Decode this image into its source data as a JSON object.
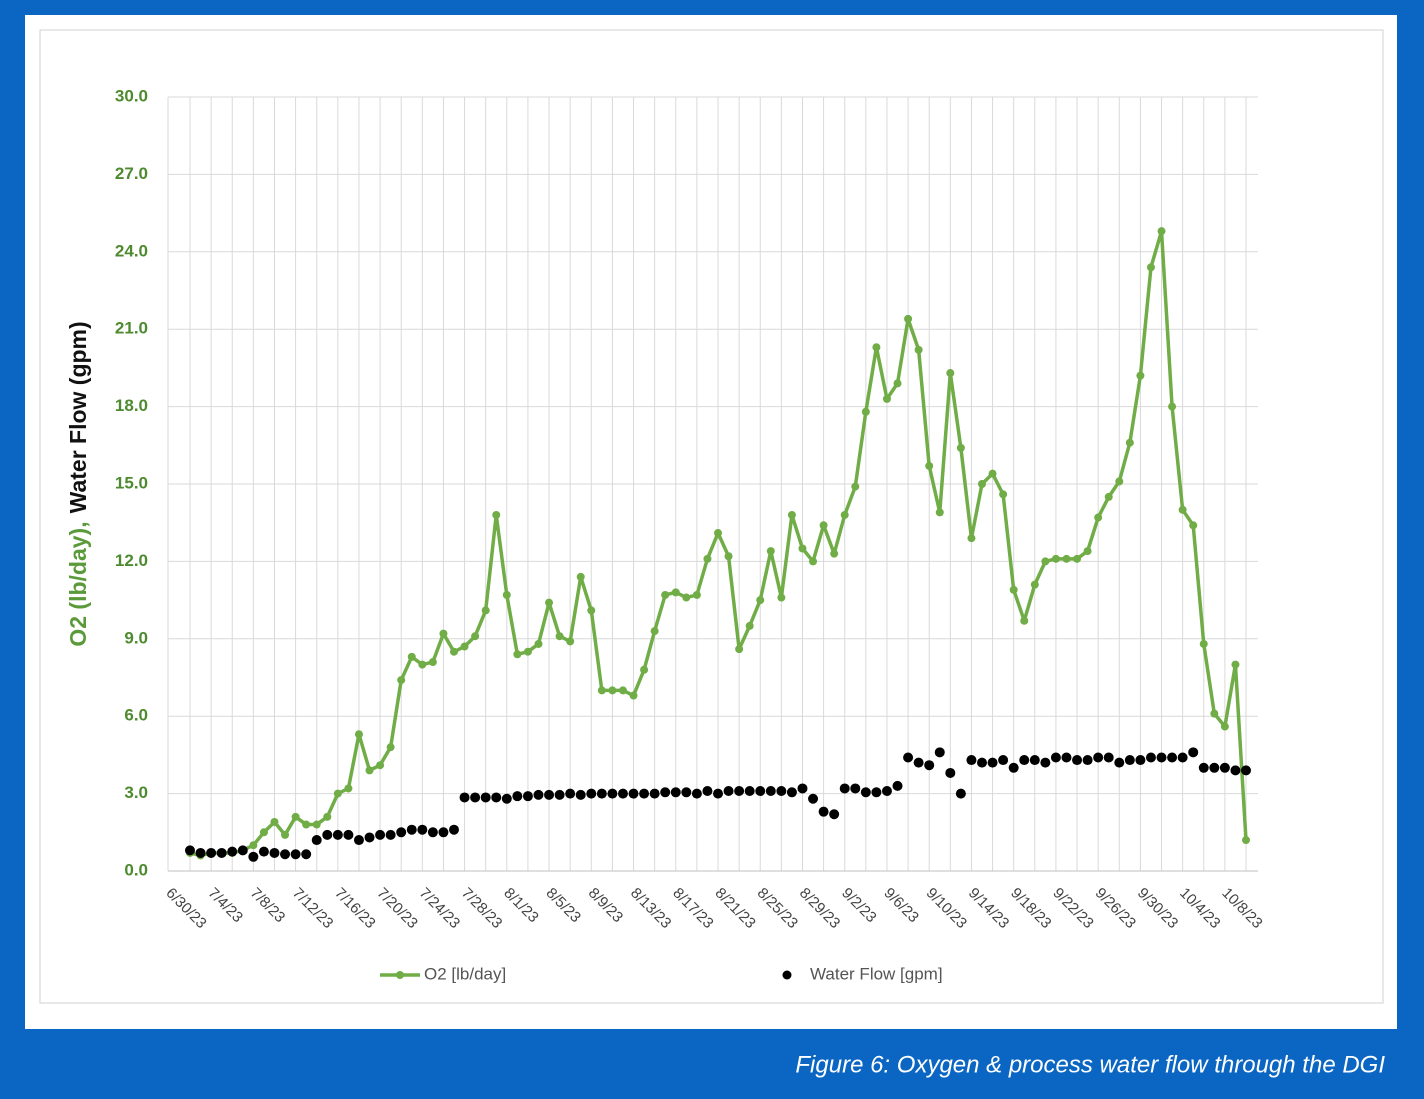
{
  "chart_data": {
    "type": "line",
    "caption": "Figure 6: Oxygen & process water flow through the DGI",
    "y_label": [
      "O2 (lb/day),",
      "Water Flow (gpm)"
    ],
    "categories": [
      "6/30/23",
      null,
      null,
      null,
      "7/4/23",
      null,
      null,
      null,
      "7/8/23",
      null,
      null,
      null,
      "7/12/23",
      null,
      null,
      null,
      "7/16/23",
      null,
      null,
      null,
      "7/20/23",
      null,
      null,
      null,
      "7/24/23",
      null,
      null,
      null,
      "7/28/23",
      null,
      null,
      null,
      "8/1/23",
      null,
      null,
      null,
      "8/5/23",
      null,
      null,
      null,
      "8/9/23",
      null,
      null,
      null,
      "8/13/23",
      null,
      null,
      null,
      "8/17/23",
      null,
      null,
      null,
      "8/21/23",
      null,
      null,
      null,
      "8/25/23",
      null,
      null,
      null,
      "8/29/23",
      null,
      null,
      null,
      "9/2/23",
      null,
      null,
      null,
      "9/6/23",
      null,
      null,
      null,
      "9/10/23",
      null,
      null,
      null,
      "9/14/23",
      null,
      null,
      null,
      "9/18/23",
      null,
      null,
      null,
      "9/22/23",
      null,
      null,
      null,
      "9/26/23",
      null,
      null,
      null,
      "9/30/23",
      null,
      null,
      null,
      "10/4/23",
      null,
      null,
      null,
      "10/8/23"
    ],
    "series": [
      {
        "name": "O2 [lb/day]",
        "color": "#70ad47",
        "style": "line",
        "values": [
          0.7,
          0.6,
          0.7,
          0.7,
          0.7,
          0.8,
          1.0,
          1.5,
          1.9,
          1.4,
          2.1,
          1.8,
          1.8,
          2.1,
          3.0,
          3.2,
          5.3,
          3.9,
          4.1,
          4.8,
          7.4,
          8.3,
          8.0,
          8.1,
          9.2,
          8.5,
          8.7,
          9.1,
          10.1,
          13.8,
          10.7,
          8.4,
          8.5,
          8.8,
          10.4,
          9.1,
          8.9,
          11.4,
          10.1,
          7.0,
          7.0,
          7.0,
          6.8,
          7.8,
          9.3,
          10.7,
          10.8,
          10.6,
          10.7,
          12.1,
          13.1,
          12.2,
          8.6,
          9.5,
          10.5,
          12.4,
          10.6,
          13.8,
          12.5,
          12.0,
          13.4,
          12.3,
          13.8,
          14.9,
          17.8,
          20.3,
          18.3,
          18.9,
          21.4,
          20.2,
          15.7,
          13.9,
          19.3,
          16.4,
          12.9,
          15.0,
          15.4,
          14.6,
          10.9,
          9.7,
          11.1,
          12.0,
          12.1,
          12.1,
          12.1,
          12.4,
          13.7,
          14.5,
          15.1,
          16.6,
          19.2,
          23.4,
          24.8,
          18.0,
          14.0,
          13.4,
          8.8,
          6.1,
          5.6,
          8.0,
          1.2
        ]
      },
      {
        "name": "Water Flow [gpm]",
        "color": "#000000",
        "style": "dots",
        "values": [
          0.8,
          0.7,
          0.7,
          0.7,
          0.75,
          0.8,
          0.55,
          0.75,
          0.7,
          0.65,
          0.65,
          0.65,
          1.2,
          1.4,
          1.4,
          1.4,
          1.2,
          1.3,
          1.4,
          1.4,
          1.5,
          1.6,
          1.6,
          1.5,
          1.5,
          1.6,
          2.85,
          2.85,
          2.85,
          2.85,
          2.8,
          2.9,
          2.9,
          2.95,
          2.95,
          2.95,
          3.0,
          2.95,
          3.0,
          3.0,
          3.0,
          3.0,
          3.0,
          3.0,
          3.0,
          3.05,
          3.05,
          3.05,
          3.0,
          3.1,
          3.0,
          3.1,
          3.1,
          3.1,
          3.1,
          3.1,
          3.1,
          3.05,
          3.2,
          2.8,
          2.3,
          2.2,
          3.2,
          3.2,
          3.05,
          3.05,
          3.1,
          3.3,
          4.4,
          4.2,
          4.1,
          4.6,
          3.8,
          3.0,
          4.3,
          4.2,
          4.2,
          4.3,
          4.0,
          4.3,
          4.3,
          4.2,
          4.4,
          4.4,
          4.3,
          4.3,
          4.4,
          4.4,
          4.2,
          4.3,
          4.3,
          4.4,
          4.4,
          4.4,
          4.4,
          4.6,
          4.0,
          4.0,
          4.0,
          3.9,
          3.9
        ]
      }
    ],
    "ylim": [
      0,
      30
    ],
    "yticks": [
      {
        "value": 0,
        "label": "0.0"
      },
      {
        "value": 3,
        "label": "3.0"
      },
      {
        "value": 6,
        "label": "6.0"
      },
      {
        "value": 9,
        "label": "9.0"
      },
      {
        "value": 12,
        "label": "12.0"
      },
      {
        "value": 15,
        "label": "15.0"
      },
      {
        "value": 18,
        "label": "18.0"
      },
      {
        "value": 21,
        "label": "21.0"
      },
      {
        "value": 24,
        "label": "24.0"
      },
      {
        "value": 27,
        "label": "27.0"
      },
      {
        "value": 30,
        "label": "30.0"
      }
    ],
    "grid": true,
    "tick_color": "#4e8a30"
  }
}
